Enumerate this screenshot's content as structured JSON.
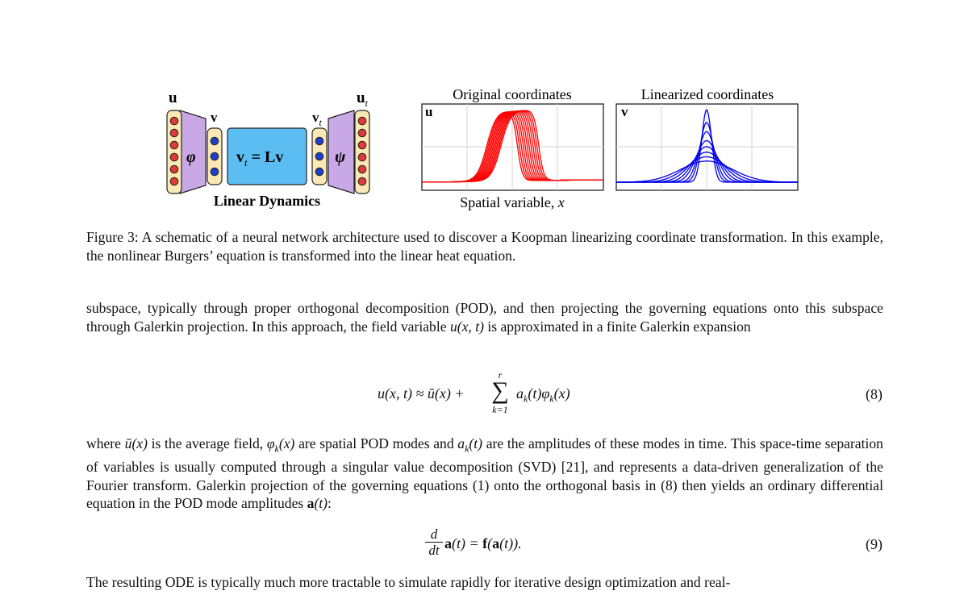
{
  "figure": {
    "schematic": {
      "label_u": "u",
      "label_v": "v",
      "label_vt": "v",
      "label_vt_sub": "t",
      "label_ut": "u",
      "label_ut_sub": "t",
      "encoder": "φ",
      "decoder": "ψ",
      "box_lhs": "v",
      "box_lhs_sub": "t",
      "box_rhs": " = Lv",
      "caption": "Linear Dynamics"
    },
    "plot_left": {
      "title": "Original coordinates",
      "corner_label": "u",
      "color": "#ff0000"
    },
    "plot_right": {
      "title": "Linearized coordinates",
      "corner_label": "v",
      "color": "#0000ee"
    },
    "xlabel": "Spatial variable, ",
    "xlabel_var": "x",
    "caption": "Figure 3: A schematic of a neural network architecture used to discover a Koopman linearizing coordinate transformation. In this example, the nonlinear Burgers’ equation is transformed into the linear heat equation."
  },
  "para1": [
    "subspace, typically through proper orthogonal decomposition (POD), and then projecting the governing equations onto this subspace through Galerkin projection. In this approach, the field variable ",
    "u(x, t)",
    " is approximated in a finite Galerkin expansion"
  ],
  "eq8": {
    "lhs": "u(x, t) ≈ ū(x) + ",
    "sum_top": "r",
    "sum_bottom": "k=1",
    "rhs": "a",
    "rhs2": "(t)φ",
    "rhs3": "(x)",
    "sub": "k",
    "number": "(8)"
  },
  "para2": {
    "t1": "where ",
    "m1": "ū(x)",
    "t2": " is the average field, ",
    "m2": "φ",
    "m2s": "k",
    "m2b": "(x)",
    "t3": " are spatial POD modes and ",
    "m3": "a",
    "m3s": "k",
    "m3b": "(t)",
    "t4": " are the amplitudes of these modes in time. This space-time separation of variables is usually computed through a singular value decomposition (SVD) [21], and represents a data-driven generalization of the Fourier transform. Galerkin projection of the governing equations (1) onto the orthogonal basis in (8) then yields an ordinary differential equation in the POD mode amplitudes ",
    "m4": "a",
    "m4b": "(t)",
    "t5": ":"
  },
  "eq9": {
    "num": "d",
    "den": "dt",
    "a": "a",
    "rest1": "(t) = ",
    "f": "f",
    "rest2": "(",
    "a2": "a",
    "rest3": "(t)).",
    "number": "(9)"
  },
  "para3": "The resulting ODE is typically much more tractable to simulate rapidly for iterative design optimization and real-"
}
